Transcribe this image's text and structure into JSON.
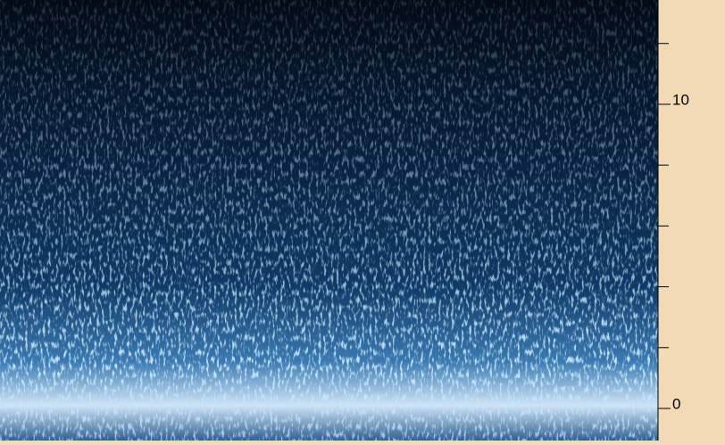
{
  "chart_data": {
    "type": "spectrogram",
    "ylim": [
      0,
      13.4
    ],
    "yticks": [
      0,
      10
    ],
    "minor_yticks": [
      2,
      4,
      6,
      8,
      12
    ]
  }
}
